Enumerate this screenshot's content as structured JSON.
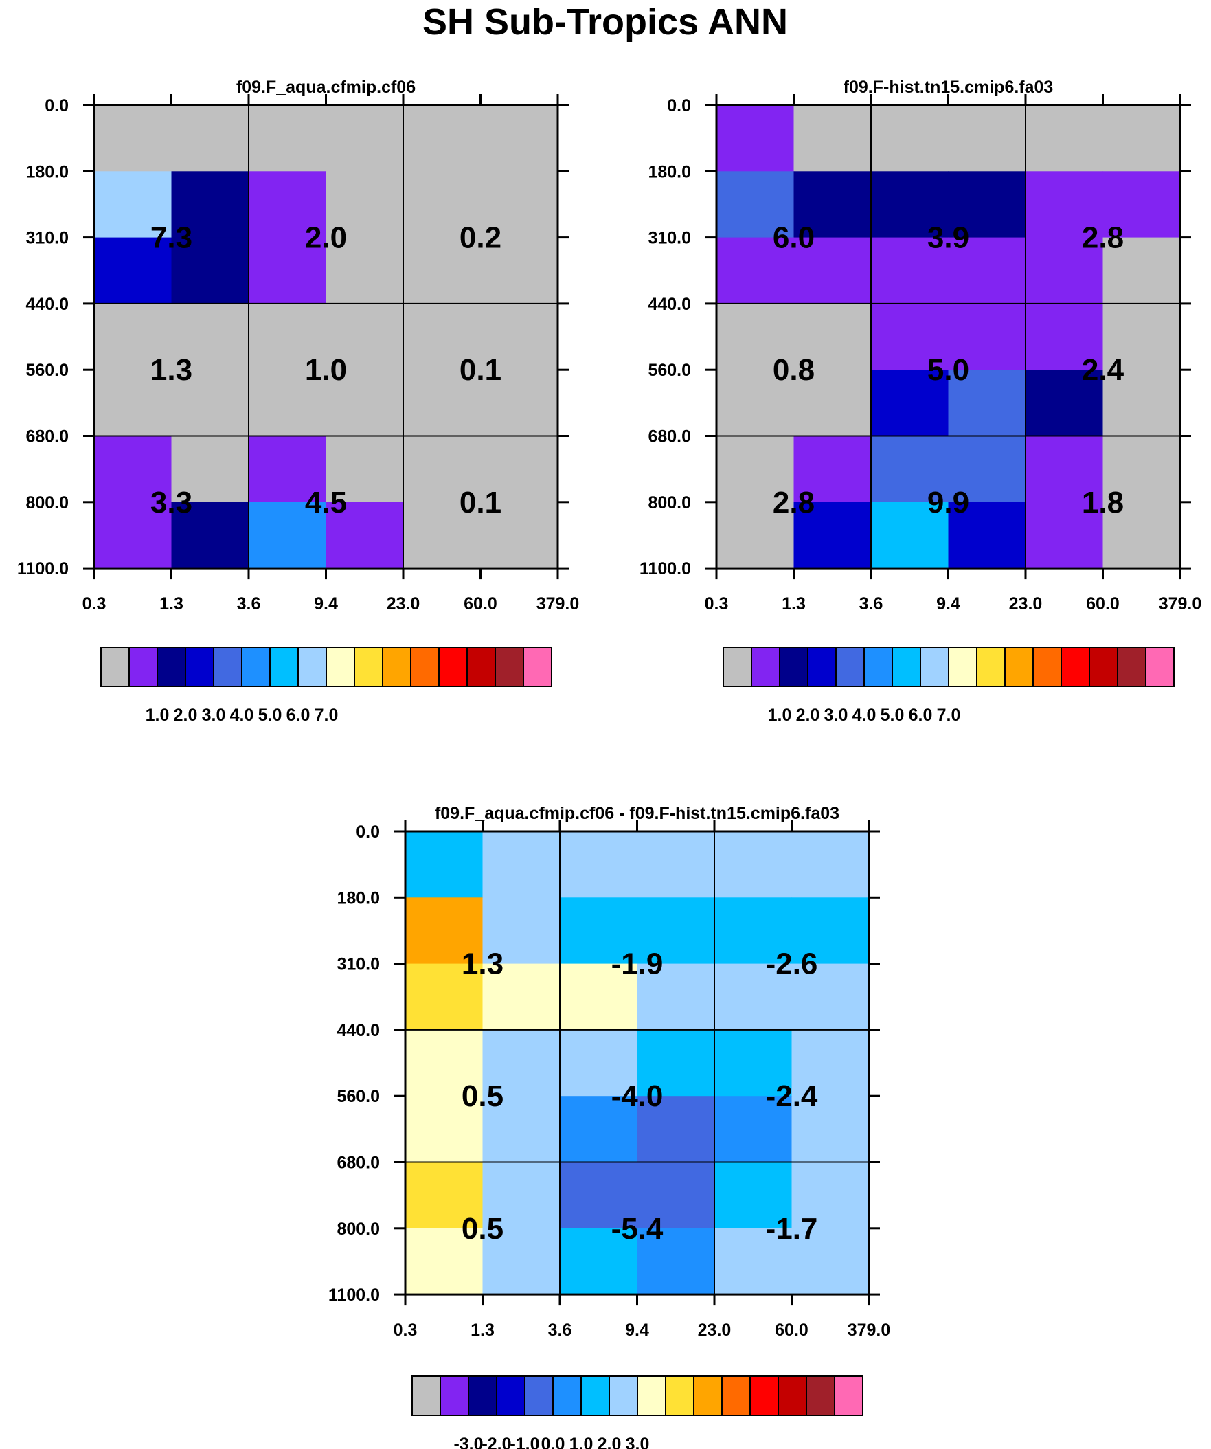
{
  "figure_title": "SH Sub-Tropics ANN",
  "colors": {
    "palette": [
      "#c0c0c0",
      "#8224f2",
      "#00008b",
      "#0000cd",
      "#4169e1",
      "#1e90ff",
      "#00bfff",
      "#a0d2ff",
      "#ffffc8",
      "#ffe135",
      "#ffa500",
      "#ff6a00",
      "#ff0000",
      "#c40000",
      "#a0202a",
      "#ff69b4"
    ]
  },
  "chart_data": [
    {
      "type": "heatmap",
      "title": "f09.F_aqua.cfmip.cf06",
      "x_ticks": [
        "0.3",
        "1.3",
        "3.6",
        "9.4",
        "23.0",
        "60.0",
        "379.0"
      ],
      "y_ticks": [
        "0.0",
        "180.0",
        "310.0",
        "440.0",
        "560.0",
        "680.0",
        "800.0",
        "1100.0"
      ],
      "cells": [
        [
          0,
          0,
          0,
          0,
          0,
          0
        ],
        [
          7,
          2,
          1,
          0,
          0,
          0
        ],
        [
          3,
          2,
          1,
          0,
          0,
          0
        ],
        [
          0,
          0,
          0,
          0,
          0,
          0
        ],
        [
          0,
          0,
          0,
          0,
          0,
          0
        ],
        [
          1,
          0,
          1,
          0,
          0,
          0
        ],
        [
          1,
          2,
          5,
          1,
          0,
          0
        ]
      ],
      "labels": [
        [
          "7.3",
          "2.0",
          "0.2"
        ],
        [
          "1.3",
          "1.0",
          "0.1"
        ],
        [
          "3.3",
          "4.5",
          "0.1"
        ]
      ],
      "colorbar": {
        "ticks": [
          "1.0",
          "2.0",
          "3.0",
          "4.0",
          "5.0",
          "6.0",
          "7.0"
        ]
      }
    },
    {
      "type": "heatmap",
      "title": "f09.F-hist.tn15.cmip6.fa03",
      "x_ticks": [
        "0.3",
        "1.3",
        "3.6",
        "9.4",
        "23.0",
        "60.0",
        "379.0"
      ],
      "y_ticks": [
        "0.0",
        "180.0",
        "310.0",
        "440.0",
        "560.0",
        "680.0",
        "800.0",
        "1100.0"
      ],
      "cells": [
        [
          1,
          0,
          0,
          0,
          0,
          0
        ],
        [
          4,
          2,
          2,
          2,
          1,
          1
        ],
        [
          1,
          1,
          1,
          1,
          1,
          0
        ],
        [
          0,
          0,
          1,
          1,
          1,
          0
        ],
        [
          0,
          0,
          3,
          4,
          2,
          0
        ],
        [
          0,
          1,
          4,
          4,
          1,
          0
        ],
        [
          0,
          3,
          6,
          3,
          1,
          0
        ]
      ],
      "labels": [
        [
          "6.0",
          "3.9",
          "2.8"
        ],
        [
          "0.8",
          "5.0",
          "2.4"
        ],
        [
          "2.8",
          "9.9",
          "1.8"
        ]
      ],
      "colorbar": {
        "ticks": [
          "1.0",
          "2.0",
          "3.0",
          "4.0",
          "5.0",
          "6.0",
          "7.0"
        ]
      }
    },
    {
      "type": "heatmap",
      "title": "f09.F_aqua.cfmip.cf06 - f09.F-hist.tn15.cmip6.fa03",
      "x_ticks": [
        "0.3",
        "1.3",
        "3.6",
        "9.4",
        "23.0",
        "60.0",
        "379.0"
      ],
      "y_ticks": [
        "0.0",
        "180.0",
        "310.0",
        "440.0",
        "560.0",
        "680.0",
        "800.0",
        "1100.0"
      ],
      "cells": [
        [
          6,
          7,
          7,
          7,
          7,
          7
        ],
        [
          10,
          7,
          6,
          6,
          6,
          6
        ],
        [
          9,
          8,
          8,
          7,
          7,
          7
        ],
        [
          8,
          7,
          7,
          6,
          6,
          7
        ],
        [
          8,
          7,
          5,
          4,
          5,
          7
        ],
        [
          9,
          7,
          4,
          4,
          6,
          7
        ],
        [
          8,
          7,
          6,
          5,
          7,
          7
        ]
      ],
      "labels": [
        [
          "1.3",
          "-1.9",
          "-2.6"
        ],
        [
          "0.5",
          "-4.0",
          "-2.4"
        ],
        [
          "0.5",
          "-5.4",
          "-1.7"
        ]
      ],
      "colorbar": {
        "ticks": [
          "-3.0",
          "-2.0",
          "-1.0",
          "0.0",
          "1.0",
          "2.0",
          "3.0"
        ]
      }
    }
  ]
}
